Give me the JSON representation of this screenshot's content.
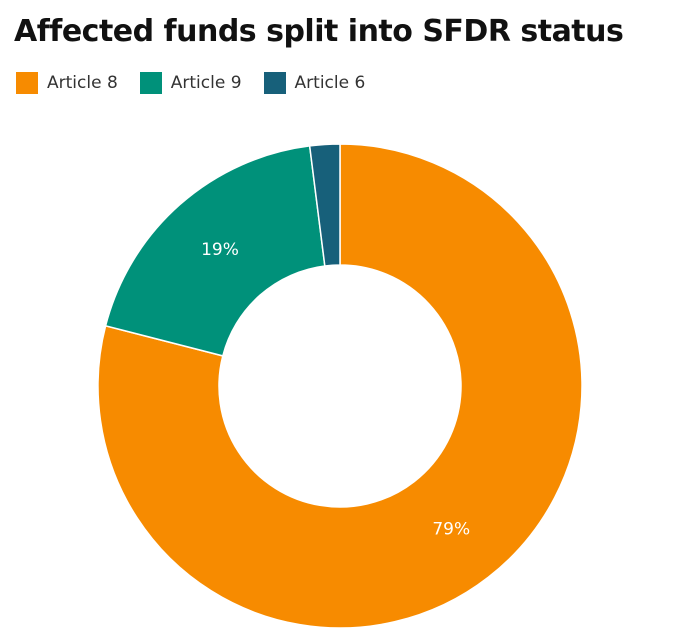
{
  "chart_data": {
    "type": "pie",
    "title": "Affected funds split into SFDR status",
    "donut": true,
    "legend_position": "top-left",
    "slices": [
      {
        "label": "Article 8",
        "value": 79,
        "color": "#f78b00",
        "data_label": "79%"
      },
      {
        "label": "Article 9",
        "value": 19,
        "color": "#00917a",
        "data_label": "19%"
      },
      {
        "label": "Article 6",
        "value": 2,
        "color": "#17607a",
        "data_label": ""
      }
    ]
  }
}
